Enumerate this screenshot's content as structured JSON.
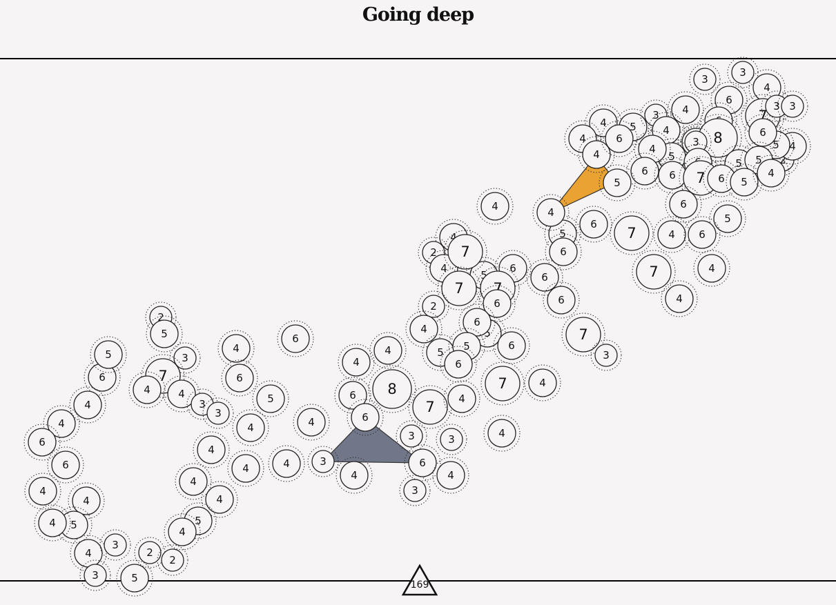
{
  "title": "Going deep",
  "counter": "169",
  "colors": {
    "background": "#f6f4f4",
    "link_dark": "#727689",
    "link_orange": "#eaa233",
    "stroke": "#222222"
  },
  "nodes": [
    {
      "n": "3"
    },
    {
      "n": "3"
    },
    {
      "n": "4"
    },
    {
      "n": "6"
    },
    {
      "n": "7"
    },
    {
      "n": "3"
    },
    {
      "n": "3"
    },
    {
      "n": "4"
    },
    {
      "n": "6"
    },
    {
      "n": "4"
    },
    {
      "n": "5"
    },
    {
      "n": "3"
    },
    {
      "n": "5"
    },
    {
      "n": "3"
    },
    {
      "n": "4"
    },
    {
      "n": "8"
    },
    {
      "n": "4"
    },
    {
      "n": "4"
    },
    {
      "n": "6"
    },
    {
      "n": "3"
    },
    {
      "n": "5"
    },
    {
      "n": "4"
    },
    {
      "n": "2"
    },
    {
      "n": "4"
    },
    {
      "n": "5"
    },
    {
      "n": "6"
    },
    {
      "n": "6"
    },
    {
      "n": "6"
    },
    {
      "n": "5"
    },
    {
      "n": "5"
    },
    {
      "n": "5"
    },
    {
      "n": "6"
    },
    {
      "n": "7"
    },
    {
      "n": "6"
    },
    {
      "n": "5"
    },
    {
      "n": "4"
    },
    {
      "n": "5"
    },
    {
      "n": "6"
    },
    {
      "n": "4"
    },
    {
      "n": "5"
    },
    {
      "n": "6"
    },
    {
      "n": "6"
    },
    {
      "n": "7"
    },
    {
      "n": "4"
    },
    {
      "n": "6"
    },
    {
      "n": "5"
    },
    {
      "n": "7"
    },
    {
      "n": "4"
    },
    {
      "n": "4"
    },
    {
      "n": "4"
    },
    {
      "n": "4"
    },
    {
      "n": "2"
    },
    {
      "n": "4"
    },
    {
      "n": "7"
    },
    {
      "n": "5"
    },
    {
      "n": "6"
    },
    {
      "n": "7"
    },
    {
      "n": "7"
    },
    {
      "n": "6"
    },
    {
      "n": "6"
    },
    {
      "n": "6"
    },
    {
      "n": "2"
    },
    {
      "n": "4"
    },
    {
      "n": "6"
    },
    {
      "n": "6"
    },
    {
      "n": "5"
    },
    {
      "n": "5"
    },
    {
      "n": "7"
    },
    {
      "n": "6"
    },
    {
      "n": "7"
    },
    {
      "n": "3"
    },
    {
      "n": "4"
    },
    {
      "n": "4"
    },
    {
      "n": "6"
    },
    {
      "n": "8"
    },
    {
      "n": "7"
    },
    {
      "n": "4"
    },
    {
      "n": "4"
    },
    {
      "n": "6"
    },
    {
      "n": "3"
    },
    {
      "n": "3"
    },
    {
      "n": "6"
    },
    {
      "n": "4"
    },
    {
      "n": "3"
    },
    {
      "n": "4"
    },
    {
      "n": "4"
    },
    {
      "n": "3"
    },
    {
      "n": "4"
    },
    {
      "n": "6"
    },
    {
      "n": "5"
    },
    {
      "n": "4"
    },
    {
      "n": "6"
    },
    {
      "n": "4"
    },
    {
      "n": "4"
    },
    {
      "n": "2"
    },
    {
      "n": "5"
    },
    {
      "n": "3"
    },
    {
      "n": "7"
    },
    {
      "n": "4"
    },
    {
      "n": "4"
    },
    {
      "n": "6"
    },
    {
      "n": "5"
    },
    {
      "n": "4"
    },
    {
      "n": "3"
    },
    {
      "n": "3"
    },
    {
      "n": "4"
    },
    {
      "n": "6"
    },
    {
      "n": "6"
    },
    {
      "n": "4"
    },
    {
      "n": "4"
    },
    {
      "n": "4"
    },
    {
      "n": "4"
    },
    {
      "n": "5"
    },
    {
      "n": "4"
    },
    {
      "n": "5"
    },
    {
      "n": "4"
    },
    {
      "n": "4"
    },
    {
      "n": "3"
    },
    {
      "n": "2"
    },
    {
      "n": "2"
    },
    {
      "n": "3"
    },
    {
      "n": "5"
    },
    {
      "n": "4"
    },
    {
      "n": "4"
    },
    {
      "n": "3"
    }
  ]
}
